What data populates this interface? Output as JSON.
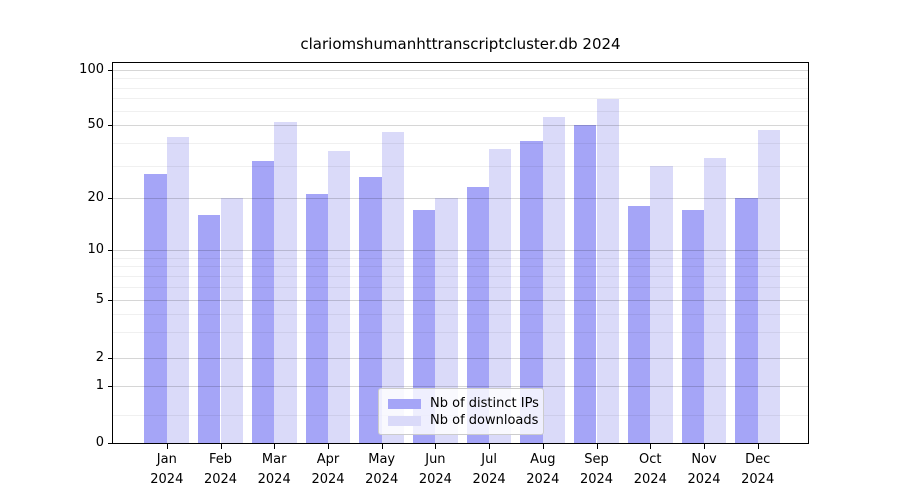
{
  "chart_data": {
    "type": "bar",
    "title": "clariomshumanhttranscriptcluster.db 2024",
    "x_year": "2024",
    "x_months": [
      "Jan",
      "Feb",
      "Mar",
      "Apr",
      "May",
      "Jun",
      "Jul",
      "Aug",
      "Sep",
      "Oct",
      "Nov",
      "Dec"
    ],
    "categories": [
      "Jan 2024",
      "Feb 2024",
      "Mar 2024",
      "Apr 2024",
      "May 2024",
      "Jun 2024",
      "Jul 2024",
      "Aug 2024",
      "Sep 2024",
      "Oct 2024",
      "Nov 2024",
      "Dec 2024"
    ],
    "series": [
      {
        "name": "Nb of distinct IPs",
        "color": "#a5a5f7",
        "values": [
          27,
          16,
          32,
          21,
          26,
          17,
          23,
          41,
          50,
          18,
          17,
          20
        ]
      },
      {
        "name": "Nb of downloads",
        "color": "#dadaf9",
        "values": [
          43,
          20,
          52,
          36,
          46,
          20,
          37,
          55,
          69,
          30,
          33,
          47
        ]
      }
    ],
    "y_axis": {
      "scale": "symlog",
      "major_ticks": [
        0,
        1,
        2,
        5,
        10,
        20,
        50,
        100
      ],
      "minor_ticks": [
        0.5,
        3,
        4,
        6,
        7,
        8,
        9,
        30,
        40,
        60,
        70,
        80,
        90
      ],
      "range": [
        0,
        117
      ]
    },
    "grid": true,
    "legend": {
      "position": "bottom-center"
    }
  },
  "colors": {
    "background": "#ffffff",
    "spine": "#000000",
    "grid_major": "rgba(0,0,0,0.16)",
    "grid_minor": "rgba(0,0,0,0.06)",
    "text": "#000000",
    "legend_border": "#cccccc",
    "legend_bg": "rgba(255,255,255,0.82)"
  }
}
